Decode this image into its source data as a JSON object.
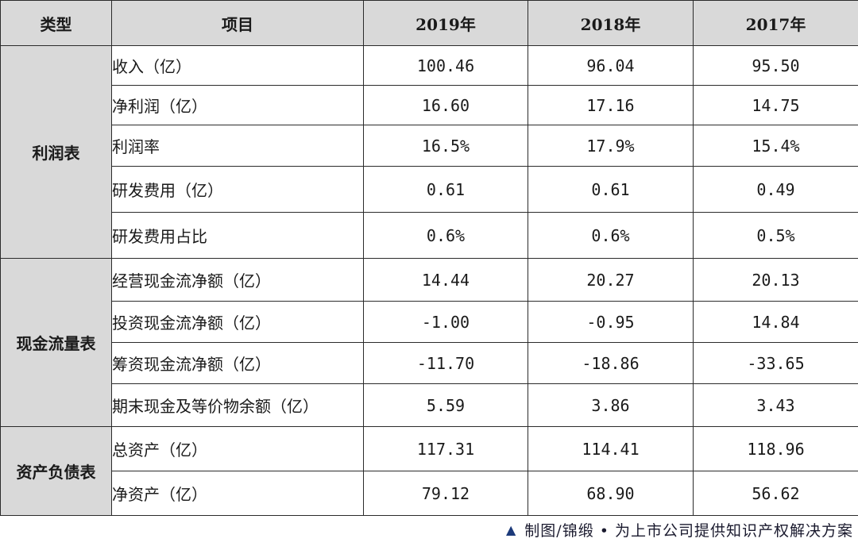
{
  "header": {
    "type": "类型",
    "item": "项目",
    "y1": "2019年",
    "y2": "2018年",
    "y3": "2017年"
  },
  "sections": [
    {
      "category": "利润表",
      "rows": [
        {
          "item": "收入（亿）",
          "v2019": "100.46",
          "v2018": "96.04",
          "v2017": "95.50"
        },
        {
          "item": "净利润（亿）",
          "v2019": "16.60",
          "v2018": "17.16",
          "v2017": "14.75"
        },
        {
          "item": "利润率",
          "v2019": "16.5%",
          "v2018": "17.9%",
          "v2017": "15.4%"
        },
        {
          "item": "研发费用（亿）",
          "v2019": "0.61",
          "v2018": "0.61",
          "v2017": "0.49"
        },
        {
          "item": "研发费用占比",
          "v2019": "0.6%",
          "v2018": "0.6%",
          "v2017": "0.5%"
        }
      ]
    },
    {
      "category": "现金流量表",
      "rows": [
        {
          "item": "经营现金流净额（亿）",
          "v2019": "14.44",
          "v2018": "20.27",
          "v2017": "20.13"
        },
        {
          "item": "投资现金流净额（亿）",
          "v2019": "-1.00",
          "v2018": "-0.95",
          "v2017": "14.84"
        },
        {
          "item": "筹资现金流净额（亿）",
          "v2019": "-11.70",
          "v2018": "-18.86",
          "v2017": "-33.65"
        },
        {
          "item": "期末现金及等价物余额（亿）",
          "v2019": "5.59",
          "v2018": "3.86",
          "v2017": "3.43"
        }
      ]
    },
    {
      "category": "资产负债表",
      "rows": [
        {
          "item": "总资产（亿）",
          "v2019": "117.31",
          "v2018": "114.41",
          "v2017": "118.96"
        },
        {
          "item": "净资产（亿）",
          "v2019": "79.12",
          "v2018": "68.90",
          "v2017": "56.62"
        }
      ]
    }
  ],
  "footer": {
    "icon": "triangle-icon",
    "text": "制图/锦缎 • 为上市公司提供知识产权解决方案"
  }
}
